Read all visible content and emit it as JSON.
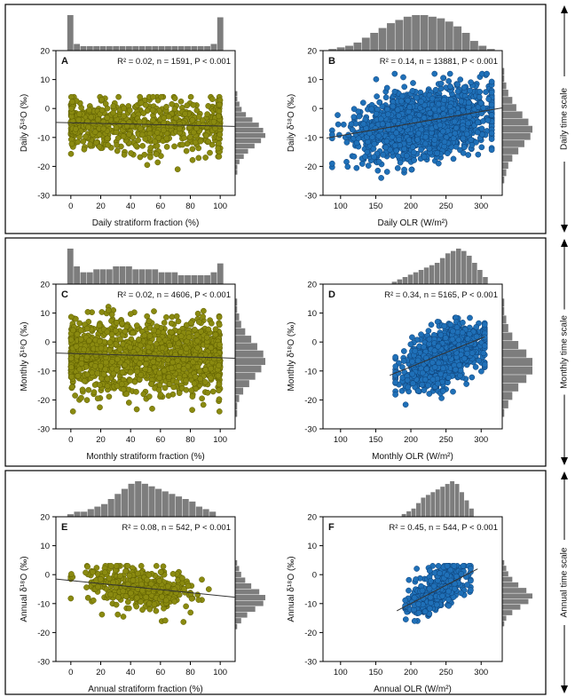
{
  "colors": {
    "olive": "#8a8a10",
    "olive_edge": "#5c5c00",
    "blue": "#1f70b8",
    "blue_edge": "#0d3f75",
    "hist": "#7d7d7d",
    "line": "#333333"
  },
  "rows": [
    {
      "scale_label": "Daily time scale"
    },
    {
      "scale_label": "Monthly time scale"
    },
    {
      "scale_label": "Annual time scale"
    }
  ],
  "chart_data": [
    {
      "id": "A",
      "type": "scatter",
      "row": 0,
      "col": 0,
      "letter": "A",
      "stats": "R² = 0.02, n = 1591, P < 0.001",
      "xlabel": "Daily stratiform fraction (%)",
      "ylabel": "Daily δ¹⁸O (‰)",
      "xlim": [
        -10,
        110
      ],
      "ylim": [
        -30,
        20
      ],
      "xticks": [
        0,
        20,
        40,
        60,
        80,
        100
      ],
      "yticks": [
        -30,
        -20,
        -10,
        0,
        10,
        20
      ],
      "regression": {
        "x0": -10,
        "y0": -4.8,
        "x1": 110,
        "y1": -6.2
      },
      "color": "olive",
      "scatter_hint": {
        "x_mean": 50,
        "x_sd": 35,
        "x_min": 0,
        "x_max": 100,
        "y_mean": -5.5,
        "y_sd": 4.5,
        "y_min": -21,
        "y_max": 4,
        "n": 750,
        "edge_mass": 0.15
      },
      "xhist": [
        16,
        3,
        2,
        2,
        2,
        2,
        2,
        2,
        2,
        2,
        2,
        2,
        2,
        2,
        2,
        2,
        2,
        2,
        2,
        2,
        2,
        2,
        3,
        15
      ],
      "yhist": [
        1,
        1,
        2,
        3,
        5,
        8,
        11,
        13,
        14,
        12,
        9,
        6,
        4,
        2,
        1,
        1
      ]
    },
    {
      "id": "B",
      "type": "scatter",
      "row": 0,
      "col": 1,
      "letter": "B",
      "stats": "R² = 0.14, n = 13881, P < 0.001",
      "xlabel": "Daily OLR (W/m²)",
      "ylabel": "Daily δ¹⁸O (‰)",
      "xlim": [
        75,
        330
      ],
      "ylim": [
        -30,
        20
      ],
      "xticks": [
        100,
        150,
        200,
        250,
        300
      ],
      "yticks": [
        -30,
        -20,
        -10,
        0,
        10,
        20
      ],
      "regression": {
        "x0": 80,
        "y0": -10.2,
        "x1": 330,
        "y1": 0.2
      },
      "color": "blue",
      "scatter_hint": {
        "x_mean": 220,
        "x_sd": 48,
        "x_min": 88,
        "x_max": 315,
        "y_mean": -5,
        "y_sd": 5.5,
        "y_min": -24,
        "y_max": 12,
        "n": 1800,
        "slope": 0.04,
        "x_ref": 220
      },
      "xhist": [
        1,
        2,
        3,
        5,
        8,
        11,
        14,
        17,
        19,
        21,
        22,
        22,
        21,
        20,
        18,
        15,
        11,
        6,
        3,
        1
      ],
      "yhist": [
        1,
        1,
        2,
        3,
        5,
        7,
        10,
        13,
        15,
        14,
        11,
        8,
        5,
        3,
        2,
        1
      ]
    },
    {
      "id": "C",
      "type": "scatter",
      "row": 1,
      "col": 0,
      "letter": "C",
      "stats": "R² = 0.02, n = 4606, P < 0.001",
      "xlabel": "Monthly stratiform fraction (%)",
      "ylabel": "Monthly δ¹⁸O (‰)",
      "xlim": [
        -10,
        110
      ],
      "ylim": [
        -30,
        20
      ],
      "xticks": [
        0,
        20,
        40,
        60,
        80,
        100
      ],
      "yticks": [
        -30,
        -20,
        -10,
        0,
        10,
        20
      ],
      "regression": {
        "x0": -10,
        "y0": -3.8,
        "x1": 110,
        "y1": -5.6
      },
      "color": "olive",
      "scatter_hint": {
        "x_mean": 50,
        "x_sd": 32,
        "x_min": 0,
        "x_max": 100,
        "y_mean": -5,
        "y_sd": 6,
        "y_min": -24,
        "y_max": 13,
        "n": 1400,
        "edge_mass": 0.12
      },
      "xhist": [
        12,
        6,
        4,
        4,
        5,
        5,
        5,
        6,
        6,
        6,
        5,
        5,
        5,
        5,
        4,
        4,
        4,
        3,
        3,
        3,
        3,
        3,
        4,
        7
      ],
      "yhist": [
        1,
        1,
        2,
        3,
        5,
        8,
        11,
        14,
        15,
        13,
        10,
        7,
        4,
        2,
        1,
        1
      ]
    },
    {
      "id": "D",
      "type": "scatter",
      "row": 1,
      "col": 1,
      "letter": "D",
      "stats": "R² = 0.34, n = 5165, P < 0.001",
      "xlabel": "Monthly OLR (W/m²)",
      "ylabel": "Monthly δ¹⁸O (‰)",
      "xlim": [
        75,
        330
      ],
      "ylim": [
        -30,
        20
      ],
      "xticks": [
        100,
        150,
        200,
        250,
        300
      ],
      "yticks": [
        -30,
        -20,
        -10,
        0,
        10,
        20
      ],
      "regression": {
        "x0": 170,
        "y0": -11.5,
        "x1": 305,
        "y1": 1.8
      },
      "color": "blue",
      "scatter_hint": {
        "x_mean": 248,
        "x_sd": 30,
        "x_min": 178,
        "x_max": 305,
        "y_mean": -4.5,
        "y_sd": 4.5,
        "y_min": -24,
        "y_max": 13,
        "n": 1100,
        "slope": 0.1,
        "x_ref": 248
      },
      "xhist": [
        1,
        2,
        3,
        4,
        5,
        6,
        7,
        8,
        9,
        11,
        13,
        14,
        15,
        14,
        12,
        9,
        6,
        3
      ],
      "yhist": [
        1,
        1,
        2,
        3,
        5,
        8,
        12,
        15,
        15,
        12,
        8,
        5,
        3,
        1
      ]
    },
    {
      "id": "E",
      "type": "scatter",
      "row": 2,
      "col": 0,
      "letter": "E",
      "stats": "R² = 0.08, n = 542, P < 0.001",
      "xlabel": "Annual stratiform fraction (%)",
      "ylabel": "Annual δ¹⁸O (‰)",
      "xlim": [
        -10,
        110
      ],
      "ylim": [
        -30,
        20
      ],
      "xticks": [
        0,
        20,
        40,
        60,
        80,
        100
      ],
      "yticks": [
        -30,
        -20,
        -10,
        0,
        10,
        20
      ],
      "regression": {
        "x0": -10,
        "y0": -1.5,
        "x1": 110,
        "y1": -7.8
      },
      "color": "olive",
      "scatter_hint": {
        "x_mean": 45,
        "x_sd": 18,
        "x_min": 0,
        "x_max": 95,
        "y_mean": -4.5,
        "y_sd": 3.5,
        "y_min": -17,
        "y_max": 3,
        "n": 420,
        "slope": -0.06,
        "x_ref": 45
      },
      "xhist": [
        1,
        2,
        2,
        3,
        4,
        5,
        7,
        9,
        11,
        13,
        14,
        13,
        12,
        11,
        10,
        9,
        8,
        7,
        6,
        4,
        3,
        2
      ],
      "yhist": [
        1,
        2,
        3,
        5,
        8,
        12,
        15,
        14,
        10,
        6,
        3,
        1
      ]
    },
    {
      "id": "F",
      "type": "scatter",
      "row": 2,
      "col": 1,
      "letter": "F",
      "stats": "R² = 0.45, n = 544, P < 0.001",
      "xlabel": "Annual OLR (W/m²)",
      "ylabel": "Annual δ¹⁸O (‰)",
      "xlim": [
        75,
        330
      ],
      "ylim": [
        -30,
        20
      ],
      "xticks": [
        100,
        150,
        200,
        250,
        300
      ],
      "yticks": [
        -30,
        -20,
        -10,
        0,
        10,
        20
      ],
      "regression": {
        "x0": 180,
        "y0": -12.5,
        "x1": 295,
        "y1": 2.0
      },
      "color": "blue",
      "scatter_hint": {
        "x_mean": 238,
        "x_sd": 22,
        "x_min": 192,
        "x_max": 285,
        "y_mean": -5,
        "y_sd": 3.5,
        "y_min": -16,
        "y_max": 3,
        "n": 420,
        "slope": 0.12,
        "x_ref": 238
      },
      "xhist": [
        1,
        2,
        3,
        5,
        7,
        8,
        9,
        10,
        11,
        12,
        13,
        12,
        9,
        6,
        3
      ],
      "yhist": [
        1,
        2,
        3,
        5,
        8,
        12,
        15,
        13,
        9,
        5,
        2,
        1
      ]
    }
  ]
}
